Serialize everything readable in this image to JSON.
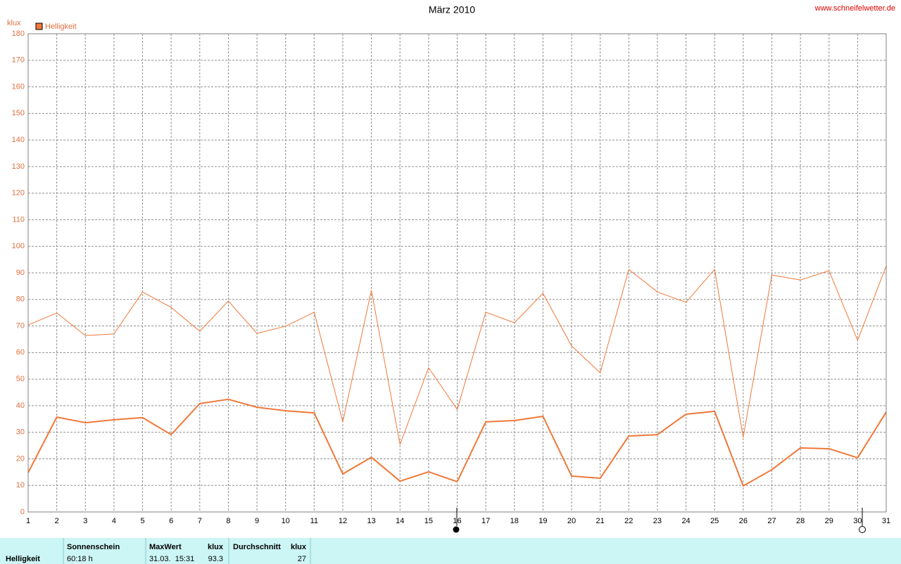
{
  "chart_data": {
    "type": "line",
    "title": "März 2010",
    "source": "www.schneifelwetter.de",
    "y_label": "klux",
    "x": [
      1,
      2,
      3,
      4,
      5,
      6,
      7,
      8,
      9,
      10,
      11,
      12,
      13,
      14,
      15,
      16,
      17,
      18,
      19,
      20,
      21,
      22,
      23,
      24,
      25,
      26,
      27,
      28,
      29,
      30,
      31
    ],
    "xlim": [
      1,
      31
    ],
    "xticks": [
      1,
      2,
      3,
      4,
      5,
      6,
      7,
      8,
      9,
      10,
      11,
      12,
      13,
      14,
      15,
      16,
      17,
      18,
      19,
      20,
      21,
      22,
      23,
      24,
      25,
      26,
      27,
      28,
      29,
      30,
      31
    ],
    "ylim": [
      0,
      180
    ],
    "yticks": [
      0,
      10,
      20,
      30,
      40,
      50,
      60,
      70,
      80,
      90,
      100,
      110,
      120,
      130,
      140,
      150,
      160,
      170,
      180
    ],
    "grid": true,
    "series": [
      {
        "name": "Helligkeit",
        "color": "#f07838",
        "width": 2,
        "values": [
          14.8,
          35.7,
          33.6,
          34.7,
          35.5,
          29.1,
          40.8,
          42.4,
          39.4,
          38.1,
          37.3,
          14.3,
          20.6,
          11.6,
          15.1,
          11.4,
          33.9,
          34.4,
          36,
          13.5,
          12.7,
          28.6,
          29.1,
          36.8,
          37.9,
          9.8,
          15.9,
          24.1,
          23.8,
          20.4,
          37.6
        ]
      },
      {
        "color": "#f07838",
        "width": 1,
        "values": [
          70.4,
          74.9,
          66.4,
          67,
          82.8,
          77,
          68,
          79.4,
          67.2,
          69.9,
          75.2,
          33.9,
          83.4,
          25.4,
          54.3,
          38.6,
          75.2,
          71.2,
          82.3,
          62.5,
          52.4,
          91.3,
          82.8,
          78.9,
          91.3,
          28.1,
          89.2,
          87.3,
          90.8,
          64.6,
          92.6
        ]
      }
    ]
  },
  "table": {
    "row_label": "Helligkeit",
    "headers": [
      "Sonnenschein",
      "MaxWert",
      "klux",
      "Durchschnitt",
      "klux"
    ],
    "cells": [
      "60:18 h",
      "31.03.  15:31",
      "93.3",
      "27"
    ]
  }
}
